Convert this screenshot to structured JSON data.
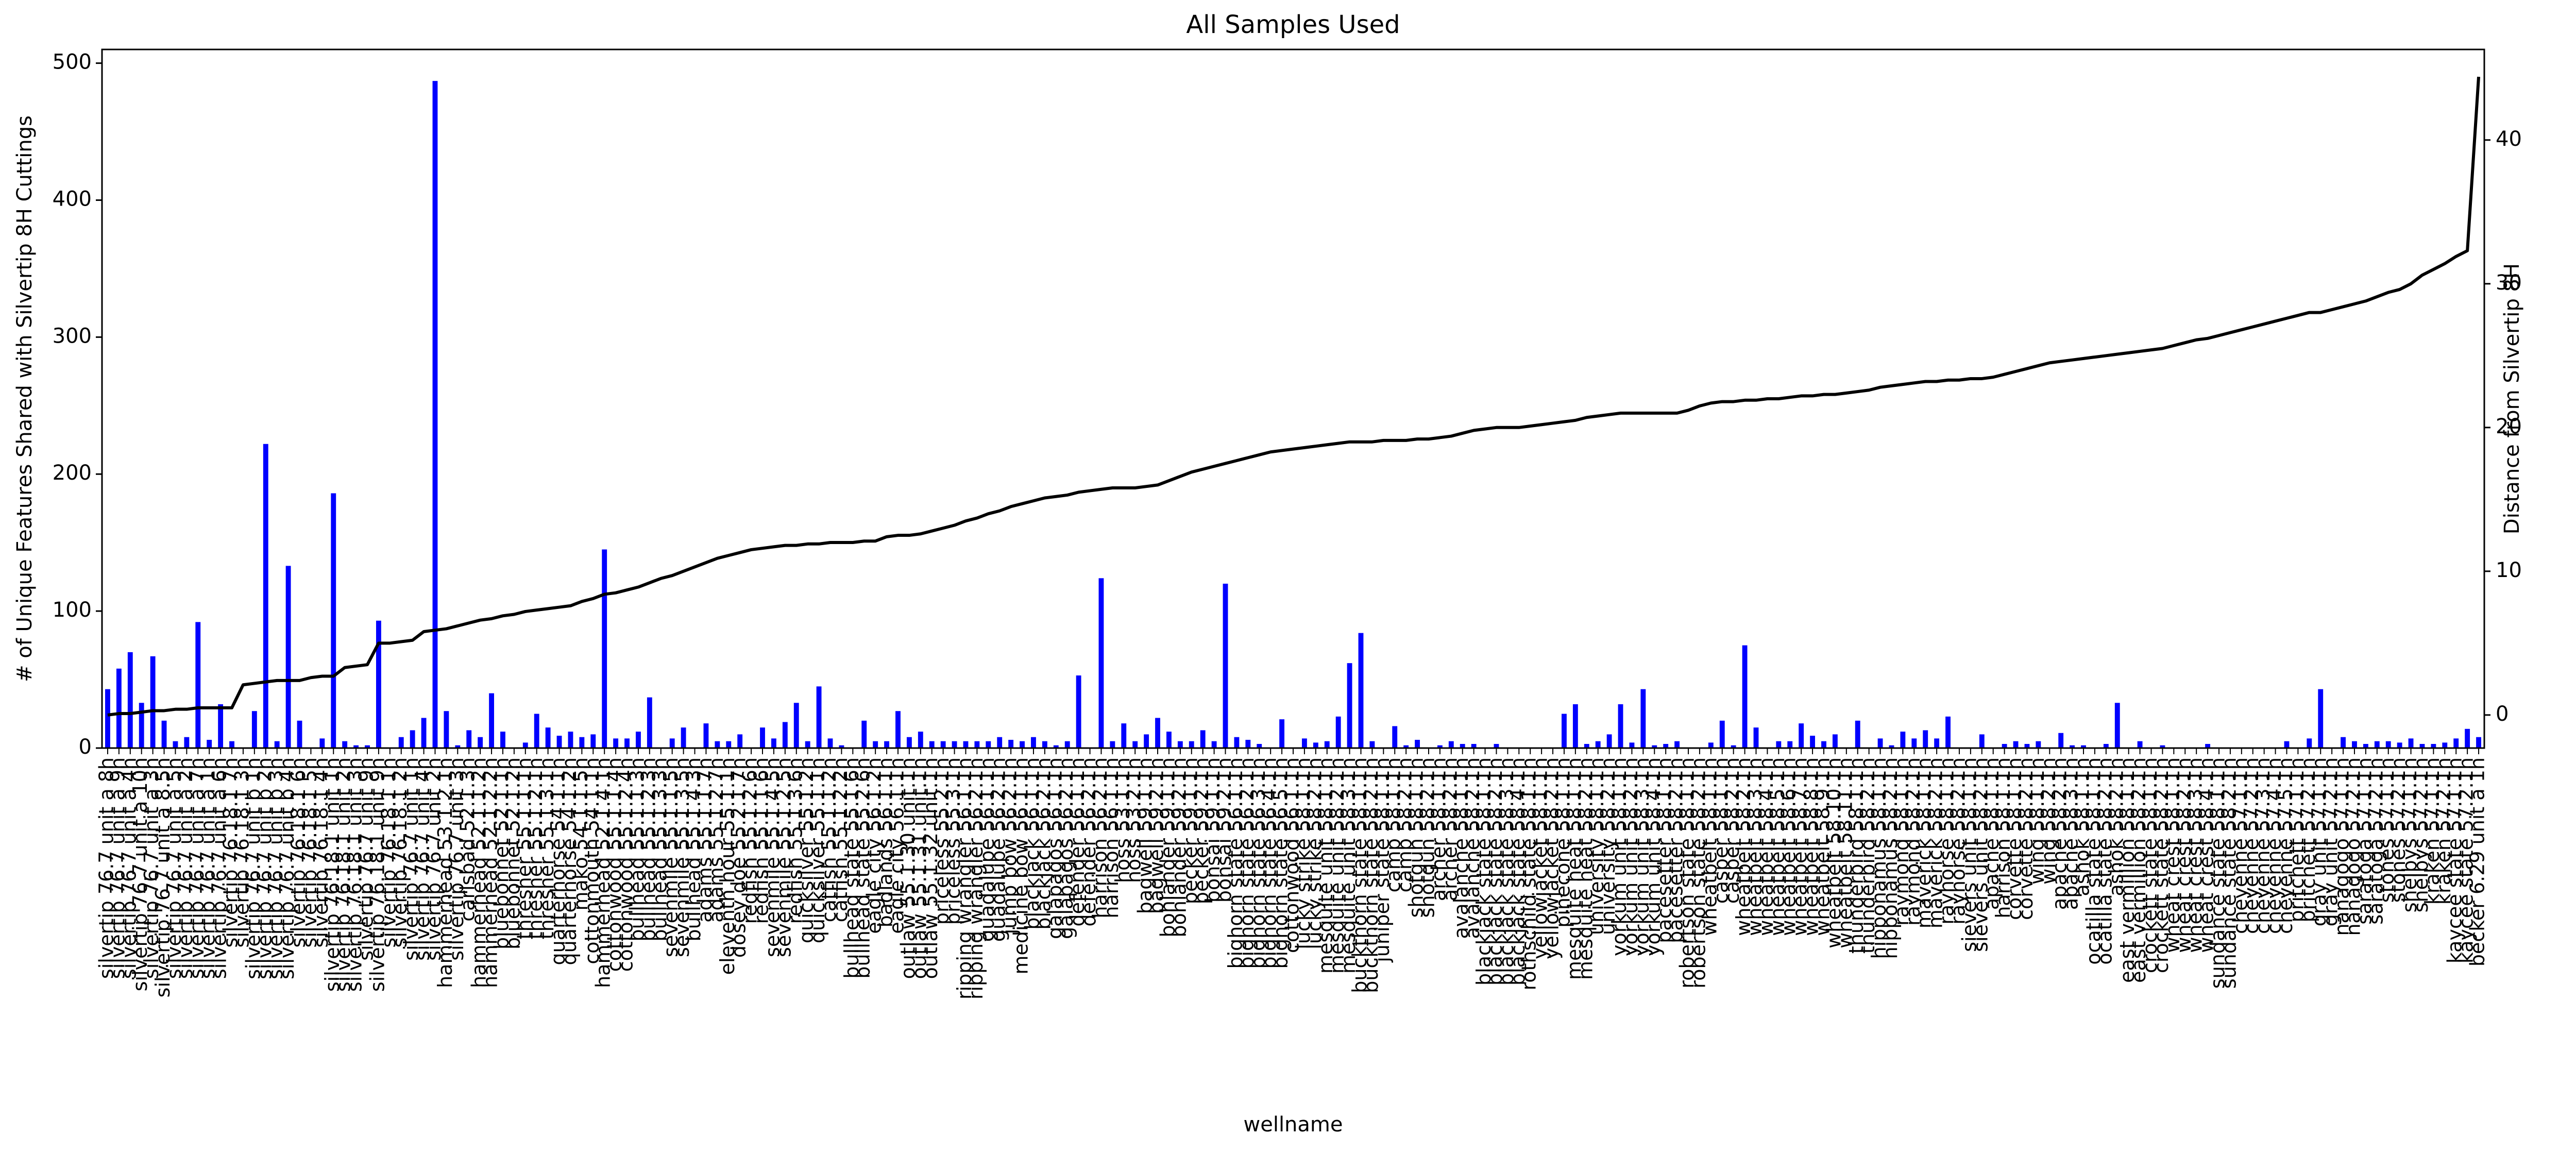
{
  "chart_data": {
    "type": "bar",
    "title": "All Samples Used",
    "x_label": "wellname",
    "y_label": "# of Unique Features Shared with Silvertip 8H Cuttings",
    "y2_label": "Distance from Silvertip 8H",
    "categories": [
      "silvertip 76.7 unit a 8h",
      "silvertip 76.7 unit a 9h",
      "silvertip 76.7 unit a 4h",
      "silvertip 76.7 unit a 10h",
      "silvertip 76.7 unit a 3h",
      "silvertip 76.7 unit a 8.5h",
      "silvertip 76.7 unit a 5h",
      "silvertip 76.7 unit a 2h",
      "silvertip 76.7 unit a 7h",
      "silvertip 76.7 unit a 1h",
      "silvertip 76.7 unit a 6h",
      "silvertip 76.18.1 7h",
      "silvertip 76.18.1 3h",
      "silvertip 76.7 unit b 1h",
      "silvertip 76.7 unit b 2h",
      "silvertip 76.7 unit b 3h",
      "silvertip 76.7 unit b 4h",
      "silvertip 76.18.1 6h",
      "silvertip 76.18.1 5h",
      "silvertip 76.18.1 4h",
      "silvertip 76.18.1 unit 1h",
      "silvertip 76.18.1 unit 2h",
      "silvertip 76.18.1 unit 3h",
      "silvertip 76.7 unit 9h",
      "silvertip 76.18.1 unit 9h",
      "silvertip 76.18.1 1h",
      "silvertip 76.18.1 2h",
      "silvertip 76.7 unit 1h",
      "silvertip 76.7 unit 4h",
      "silvertip 76.7 unit 2h",
      "hammerhead 53.1.2.1h",
      "silvertip 76.7 unit 3h",
      "carlsbad 52.1.3h",
      "hammerhead 52.1.1.2h",
      "hammerhead 52.1.2.2h",
      "bluebonnet 52.1.1h",
      "bluebonnet 52.1.2h",
      "thresher 55.1.1.1h",
      "thresher 55.1.2.1h",
      "thresher 55.1.3.1h",
      "quarterhorse 54.1.1h",
      "quarterhorse 54.1.2h",
      "mako 54.1.1.5h",
      "cottonmouth 54.1.1h",
      "hammerhead 52.1.4.1h",
      "cottonwood 55.1.1.4h",
      "cottonwood 55.1.2.4h",
      "bullhead 55.1.1.3h",
      "bullhead 55.1.2.3h",
      "bullhead 55.1.3.3h",
      "sevenmile 55.1.1.5h",
      "sevenmile 55.1.3.5h",
      "bullhead 55.1.4.3h",
      "adams 55.1.1.7h",
      "adams 55.1.2.7h",
      "eleventh hour 55.1.1h",
      "dosey doe 55.2.1.7h",
      "redfish 55.1.2.6h",
      "redfish 55.1.1.6h",
      "sevenmile 55.1.4.5h",
      "sevenmile 55.1.2.5h",
      "redfish 55.1.3.6h",
      "quicksilver 55.1.2h",
      "quicksilver 55.1.1h",
      "catfish 55.1.1.2h",
      "catfish 55.1.2.2h",
      "bullhead state 55.1.6h",
      "bullhead state 55.2.6h",
      "eagle city 56.1.2h",
      "badlands 56.1.1h",
      "eagle city 56.1.1h",
      "outlaw 55.1.30.unit.1h",
      "outlaw 55.1.31.unit.1h",
      "outlaw 55.1.32.unit.1h",
      "priceless 55.2.1h",
      "priceless 55.3.1h",
      "ripping wrangler 56.1.1h",
      "ripping wrangler 56.2.1h",
      "guadalupe 56.1.1h",
      "guadalupe 56.2.1h",
      "jump bow 56.2.1h",
      "medicine bow 56.1.1h",
      "blackjack 56.1.1h",
      "blackjack 56.2.1h",
      "galapagos 56.1.1h",
      "galapagos 56.2.1h",
      "defender 56.1.1h",
      "defender 56.2.1h",
      "harrison 56.2.1h",
      "harrison 56.1.1h",
      "hoss 53.1.1h",
      "hoss 53.2.1h",
      "bagwell 59.1.1h",
      "bagwell 59.2.1h",
      "bohlander 59.1.1h",
      "bohlander 59.2.1h",
      "pecker 59.1.1h",
      "pecker 59.2.1h",
      "bonsai 59.1.1h",
      "bonsai 59.2.1h",
      "bighorn state 56.1.1h",
      "bighorn state 56.2.1h",
      "bighorn state 56.3.1h",
      "bighorn state 56.4.1h",
      "bighorn state 56.5.1h",
      "cottonwood 56.1.1h",
      "lucky strike 58.1.1h",
      "lucky strike 58.2.1h",
      "mesquite unit 58.1.1h",
      "mesquite unit 58.2.1h",
      "mesquite unit 58.3.1h",
      "buckthorn state 58.1.1h",
      "buckthorn state 58.2.1h",
      "juniper state 58.1.1h",
      "camp 58.1.1h",
      "camp 58.2.1h",
      "shotgun 58.1.1h",
      "shotgun 58.2.1h",
      "archer 58.1.1h",
      "archer 58.2.1h",
      "avalanche 58.1.1h",
      "avalanche 58.2.1h",
      "blackjack state 58.1.1h",
      "blackjack state 58.2.1h",
      "blackjack state 58.3.1h",
      "blackjack state 58.4.1h",
      "rothschild state 58.1.1h",
      "yellowjacket 58.1.1h",
      "yellowjacket 58.2.1h",
      "pinecone 58.1.1h",
      "mesquite heat 58.1.1h",
      "mesquite heat 58.2.1h",
      "university 58.1.1h",
      "university 58.2.1h",
      "yorkum unit 58.1.1h",
      "yorkum unit 58.2.1h",
      "yorkum unit 58.3.1h",
      "yorkum unit 58.4.1h",
      "pacesetter 58.1.1h",
      "pacesetter 58.2.1h",
      "robertson state 58.1.1h",
      "robertson state 58.2.1h",
      "wheatbelt 58.1.1h",
      "casper 58.1.1h",
      "casper 58.2.1h",
      "wheatbelt 58.2.1h",
      "wheatbelt 58.3.1h",
      "wheatbelt 58.4.1h",
      "wheatbelt 58.5.1h",
      "wheatbelt 58.6.1h",
      "wheatbelt 58.7.1h",
      "wheatbelt 58.8.1h",
      "wheatbelt 58.9.1h",
      "wheatbelt 58.10.1h",
      "wheatbelt 58.11.1h",
      "thunderbird 58.1.1h",
      "thunderbird 58.2.1h",
      "hipponamus 58.1.1h",
      "hipponamus 58.2.1h",
      "raymond 58.1.1h",
      "raymond 58.2.1h",
      "maverick 58.1.1h",
      "maverick 58.2.1h",
      "rayhorse 58.1.1h",
      "rayhorse 58.2.1h",
      "sievers unit 58.1.1h",
      "sievers unit 58.2.1h",
      "apache 58.1.1h",
      "harrison 58.1.1h",
      "corvette 58.1.1h",
      "corvette 58.2.1h",
      "wing 58.1.1h",
      "wing 58.2.1h",
      "apache 58.2.1h",
      "apache 58.3.1h",
      "ashok 58.1.1h",
      "ocatilla state 58.1.1h",
      "ocatilla state 58.2.1h",
      "ashok 58.2.1h",
      "east vermillion 58.1.1h",
      "east vermillion 58.2.1h",
      "crockett state 58.1.1h",
      "crockett state 58.2.1h",
      "wheat crest 58.1.1h",
      "wheat crest 58.2.1h",
      "wheat crest 58.3.1h",
      "wheat crest 58.4.1h",
      "sundance state 58.1.1h",
      "sundance state 58.2.1h",
      "cheyenne 57.1.1h",
      "cheyenne 57.2.1h",
      "cheyenne 57.3.1h",
      "cheyenne 57.4.1h",
      "cheyenne 57.5.1h",
      "pritchett 57.1.1h",
      "pritchett 57.2.1h",
      "gray unit 57.1.1h",
      "gray unit 57.2.1h",
      "nanagogo 57.1.1h",
      "nanagogo 57.2.1h",
      "saratoga 57.1.1h",
      "saratoga 57.2.1h",
      "stones 57.1.1h",
      "stones 57.2.1h",
      "shelbys 57.1.1h",
      "shelbys 57.2.1h",
      "kraken 57.1.1h",
      "kraken 57.2.1h",
      "kaycee state 57.1.1h",
      "kaycee state 57.2.1h",
      "becker 6.29 unit a 1h"
    ],
    "series": [
      {
        "type": "bar",
        "color": "#0000ff",
        "values": [
          43,
          58,
          70,
          33,
          67,
          20,
          5,
          8,
          92,
          6,
          32,
          5,
          0,
          27,
          222,
          5,
          133,
          20,
          0,
          7,
          186,
          5,
          2,
          2,
          93,
          0,
          8,
          13,
          22,
          487,
          27,
          2,
          13,
          8,
          40,
          12,
          0,
          4,
          25,
          15,
          9,
          12,
          8,
          10,
          145,
          7,
          7,
          12,
          37,
          0,
          7,
          15,
          0,
          18,
          5,
          5,
          10,
          0,
          15,
          7,
          19,
          33,
          5,
          45,
          7,
          2,
          0,
          20,
          5,
          5,
          27,
          8,
          12,
          5,
          5,
          5,
          5,
          5,
          5,
          8,
          6,
          5,
          8,
          5,
          2,
          5,
          53,
          0,
          124,
          5,
          18,
          5,
          10,
          22,
          12,
          5,
          5,
          13,
          5,
          120,
          8,
          6,
          3,
          0,
          21,
          0,
          7,
          4,
          5,
          23,
          62,
          84,
          5,
          0,
          16,
          2,
          6,
          0,
          2,
          5,
          3,
          3,
          0,
          3,
          0,
          0,
          0,
          0,
          0,
          25,
          32,
          3,
          5,
          10,
          32,
          4,
          43,
          2,
          3,
          5,
          0,
          0,
          4,
          20,
          2,
          75,
          15,
          0,
          5,
          5,
          18,
          9,
          5,
          10,
          0,
          20,
          0,
          7,
          2,
          12,
          7,
          13,
          7,
          23,
          0,
          0,
          10,
          0,
          3,
          5,
          3,
          5,
          0,
          11,
          2,
          2,
          0,
          3,
          33,
          0,
          5,
          0,
          2,
          0,
          0,
          0,
          3,
          0,
          0,
          0,
          0,
          0,
          0,
          5,
          0,
          7,
          43,
          0,
          8,
          5,
          3,
          5,
          5,
          4,
          7,
          3,
          3,
          4,
          7,
          14,
          8
        ]
      },
      {
        "type": "line",
        "axis": "y2",
        "color": "#000000",
        "values": [
          0,
          0.1,
          0.1,
          0.2,
          0.3,
          0.3,
          0.4,
          0.4,
          0.5,
          0.5,
          0.5,
          0.5,
          2.1,
          2.2,
          2.3,
          2.4,
          2.4,
          2.4,
          2.6,
          2.7,
          2.7,
          3.3,
          3.4,
          3.5,
          5,
          5,
          5.1,
          5.2,
          5.8,
          5.9,
          6,
          6.2,
          6.4,
          6.6,
          6.7,
          6.9,
          7,
          7.2,
          7.3,
          7.4,
          7.5,
          7.6,
          7.9,
          8.1,
          8.4,
          8.5,
          8.7,
          8.9,
          9.2,
          9.5,
          9.7,
          10,
          10.3,
          10.6,
          10.9,
          11.1,
          11.3,
          11.5,
          11.6,
          11.7,
          11.8,
          11.8,
          11.9,
          11.9,
          12,
          12,
          12,
          12.1,
          12.1,
          12.4,
          12.5,
          12.5,
          12.6,
          12.8,
          13,
          13.2,
          13.5,
          13.7,
          14,
          14.2,
          14.5,
          14.7,
          14.9,
          15.1,
          15.2,
          15.3,
          15.5,
          15.6,
          15.7,
          15.8,
          15.8,
          15.8,
          15.9,
          16,
          16.3,
          16.6,
          16.9,
          17.1,
          17.3,
          17.5,
          17.7,
          17.9,
          18.1,
          18.3,
          18.4,
          18.5,
          18.6,
          18.7,
          18.8,
          18.9,
          19,
          19,
          19,
          19.1,
          19.1,
          19.1,
          19.2,
          19.2,
          19.3,
          19.4,
          19.6,
          19.8,
          19.9,
          20,
          20,
          20,
          20.1,
          20.2,
          20.3,
          20.4,
          20.5,
          20.7,
          20.8,
          20.9,
          21,
          21,
          21,
          21,
          21,
          21,
          21.2,
          21.5,
          21.7,
          21.8,
          21.8,
          21.9,
          21.9,
          22,
          22,
          22.1,
          22.2,
          22.2,
          22.3,
          22.3,
          22.4,
          22.5,
          22.6,
          22.8,
          22.9,
          23,
          23.1,
          23.2,
          23.2,
          23.3,
          23.3,
          23.4,
          23.4,
          23.5,
          23.7,
          23.9,
          24.1,
          24.3,
          24.5,
          24.6,
          24.7,
          24.8,
          24.9,
          25,
          25.1,
          25.2,
          25.3,
          25.4,
          25.5,
          25.7,
          25.9,
          26.1,
          26.2,
          26.4,
          26.6,
          26.8,
          27,
          27.2,
          27.4,
          27.6,
          27.8,
          28,
          28,
          28.2,
          28.4,
          28.6,
          28.8,
          29.1,
          29.4,
          29.6,
          30,
          30.6,
          31,
          31.4,
          31.9,
          32.3,
          44.4
        ]
      }
    ],
    "ylim": [
      0,
      510
    ],
    "yticks": [
      0,
      100,
      200,
      300,
      400,
      500
    ],
    "y2lim": [
      -2.3,
      46.3
    ],
    "y2ticks": [
      0,
      10,
      20,
      30,
      40
    ],
    "grid": false
  }
}
